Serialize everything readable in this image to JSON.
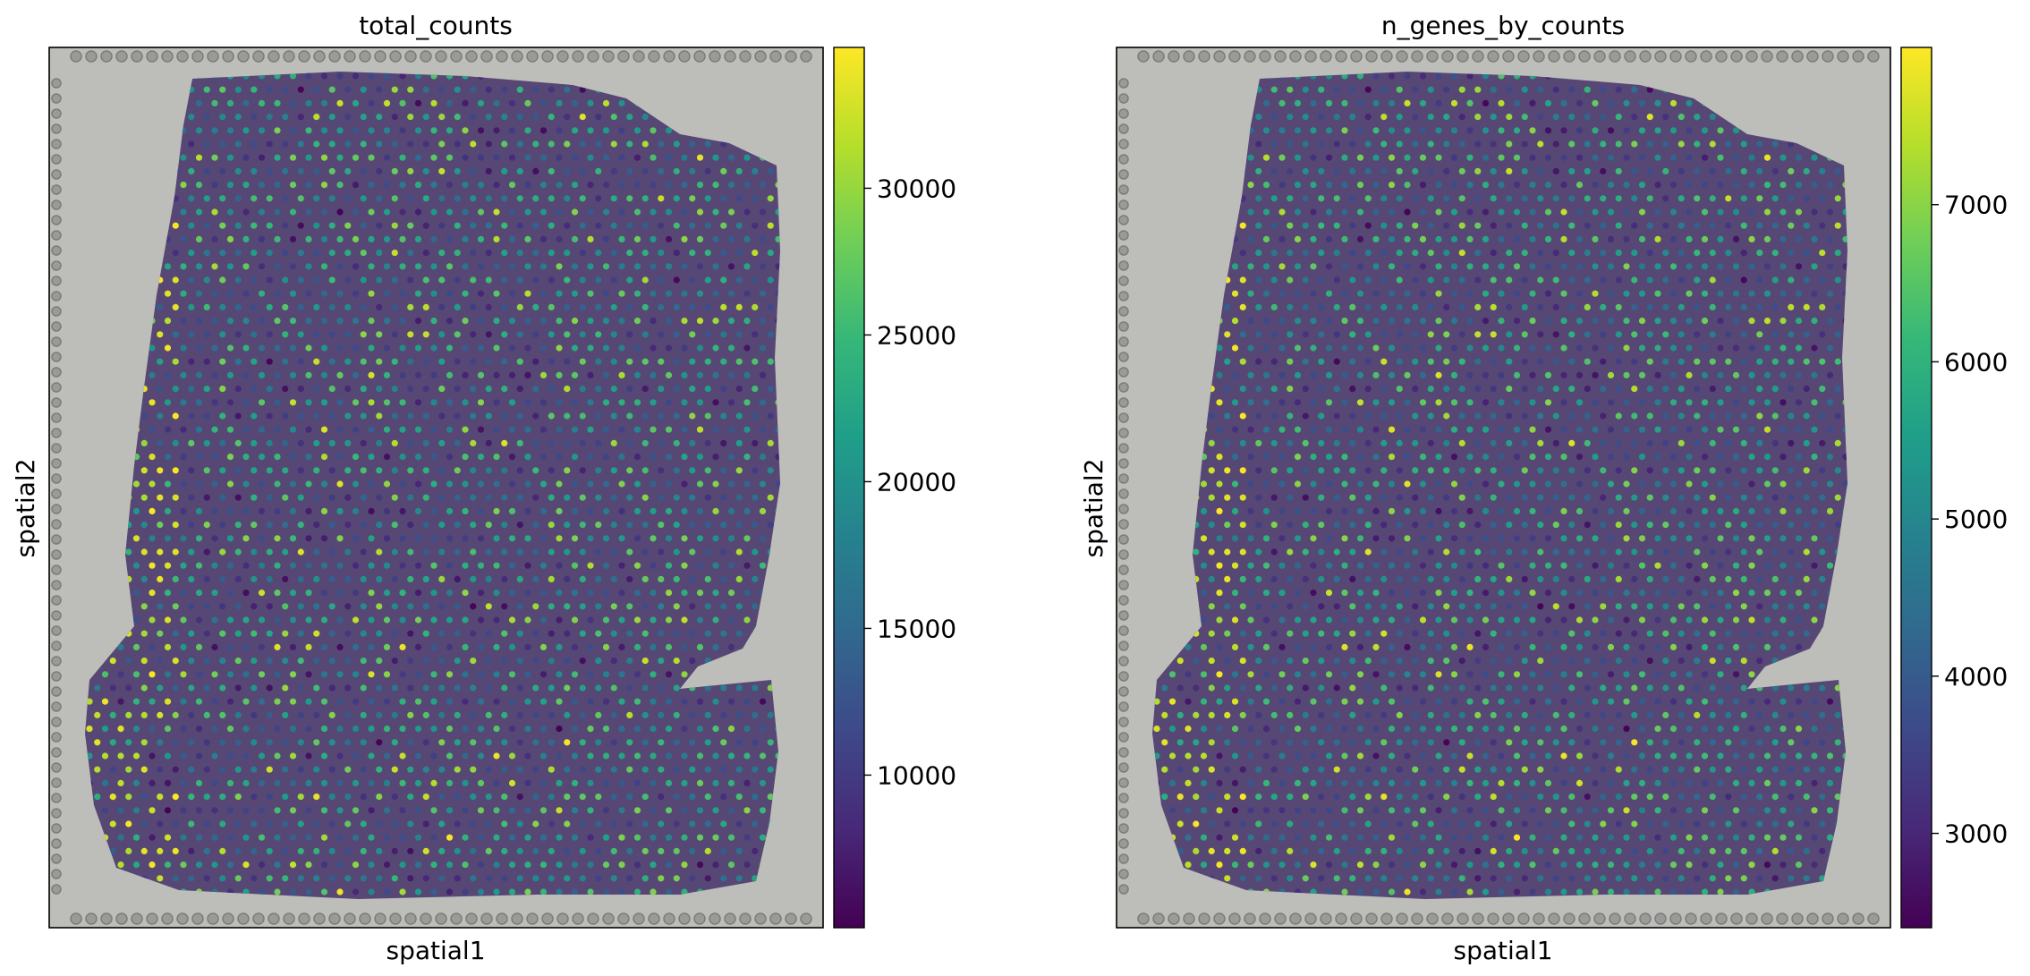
{
  "colors": {
    "background_tissue": "#8c8d86",
    "colormap": [
      "#440154",
      "#482878",
      "#3e4989",
      "#31688e",
      "#26828e",
      "#1f9e89",
      "#35b779",
      "#6ece58",
      "#b5de2b",
      "#fde725"
    ]
  },
  "chart_data": [
    {
      "type": "scatter",
      "title": "total_counts",
      "xlabel": "spatial1",
      "ylabel": "spatial2",
      "grid": false,
      "colorbar": {
        "min": 4800,
        "max": 34800,
        "ticks": [
          10000,
          15000,
          20000,
          25000,
          30000
        ],
        "tick_labels": [
          "10000",
          "15000",
          "20000",
          "25000",
          "30000"
        ]
      },
      "seed": 17
    },
    {
      "type": "scatter",
      "title": "n_genes_by_counts",
      "xlabel": "spatial1",
      "ylabel": "spatial2",
      "grid": false,
      "colorbar": {
        "min": 2400,
        "max": 8000,
        "ticks": [
          3000,
          4000,
          5000,
          6000,
          7000
        ],
        "tick_labels": [
          "3000",
          "4000",
          "5000",
          "6000",
          "7000"
        ]
      },
      "seed": 17
    }
  ]
}
